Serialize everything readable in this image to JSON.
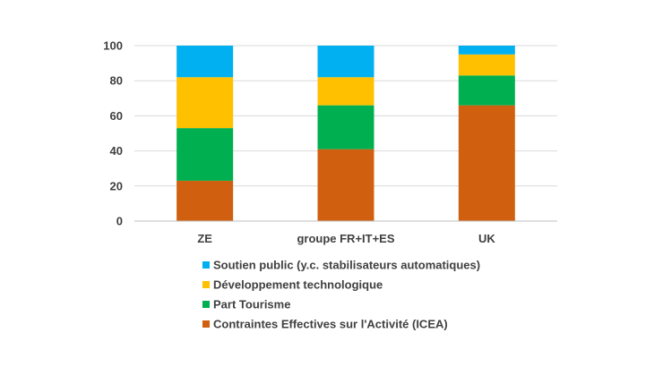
{
  "chart_data": {
    "type": "bar",
    "stacked": true,
    "title": "",
    "xlabel": "",
    "ylabel": "",
    "ylim": [
      0,
      100
    ],
    "yticks": [
      0,
      20,
      40,
      60,
      80,
      100
    ],
    "grid": true,
    "legend_position": "bottom",
    "categories": [
      "ZE",
      "groupe FR+IT+ES",
      "UK"
    ],
    "series": [
      {
        "name": "Contraintes Effectives sur l'Activité (ICEA)",
        "color": "#D06010",
        "values": [
          23,
          41,
          66
        ]
      },
      {
        "name": "Part Tourisme",
        "color": "#00B050",
        "values": [
          30,
          25,
          17
        ]
      },
      {
        "name": "Développement technologique",
        "color": "#FFC000",
        "values": [
          29,
          16,
          12
        ]
      },
      {
        "name": "Soutien public (y.c. stabilisateurs automatiques)",
        "color": "#00B0F0",
        "values": [
          18,
          18,
          5
        ]
      }
    ]
  }
}
